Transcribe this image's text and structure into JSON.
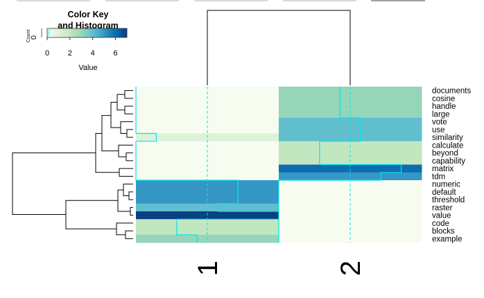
{
  "chart_data": {
    "type": "heatmap",
    "columns": [
      "1",
      "2"
    ],
    "rows": [
      "documents",
      "cosine",
      "handle",
      "large",
      "vote",
      "use",
      "similarity",
      "calculate",
      "beyond",
      "capability",
      "matrix",
      "tdm",
      "numeric",
      "default",
      "threshold",
      "raster",
      "value",
      "code",
      "blocks",
      "example"
    ],
    "values": [
      [
        0,
        3.0
      ],
      [
        0,
        3.0
      ],
      [
        0,
        3.0
      ],
      [
        0,
        3.0
      ],
      [
        0,
        4.0
      ],
      [
        0,
        4.0
      ],
      [
        1,
        4.0
      ],
      [
        0,
        2.0
      ],
      [
        0,
        2.0
      ],
      [
        0,
        2.0
      ],
      [
        0,
        6.0
      ],
      [
        0,
        5.0
      ],
      [
        5.0,
        0
      ],
      [
        5.0,
        0
      ],
      [
        5.0,
        0
      ],
      [
        4.0,
        0
      ],
      [
        7.0,
        0
      ],
      [
        2.0,
        0
      ],
      [
        2.0,
        0
      ],
      [
        3.0,
        0
      ]
    ],
    "color_range": [
      0,
      7
    ],
    "colors": [
      "#f7fcf0",
      "#e0f3db",
      "#ccebc5",
      "#a8ddb5",
      "#7bccc4",
      "#4eb3d3",
      "#2b8cbe",
      "#0868ac",
      "#084081"
    ],
    "trace_color": "#00e5ee",
    "key": {
      "title_line1": "Color Key",
      "title_line2": "and Histogram",
      "xlabel": "Value",
      "ylabel": "Count",
      "ytick": "0",
      "ticks": [
        "0",
        "2",
        "4",
        "6"
      ]
    }
  }
}
